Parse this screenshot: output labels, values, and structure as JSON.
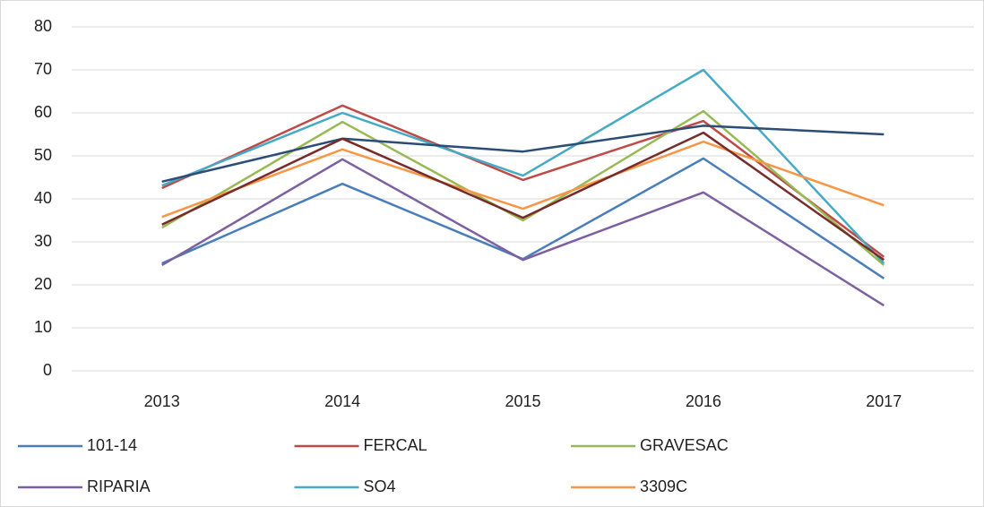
{
  "chart_data": {
    "type": "line",
    "categories": [
      "2013",
      "2014",
      "2015",
      "2016",
      "2017"
    ],
    "series": [
      {
        "name": "101-14",
        "color": "#4a7ebb",
        "values": [
          25,
          43.5,
          26,
          49.4,
          21.5
        ]
      },
      {
        "name": "FERCAL",
        "color": "#be4b48",
        "values": [
          42.5,
          61.7,
          44.4,
          58.1,
          26.5
        ]
      },
      {
        "name": "GRAVESAC",
        "color": "#98b954",
        "values": [
          33.3,
          57.9,
          35,
          60.4,
          24.6
        ]
      },
      {
        "name": "RIPARIA",
        "color": "#7d60a0",
        "values": [
          24.6,
          49.2,
          25.8,
          41.5,
          15.2
        ]
      },
      {
        "name": "SO4",
        "color": "#46aac5",
        "values": [
          43.1,
          60,
          45.4,
          70,
          25
        ]
      },
      {
        "name": "3309C",
        "color": "#f79646",
        "values": [
          35.8,
          51.5,
          37.7,
          53.3,
          38.5
        ]
      },
      {
        "color": "#2c4d75",
        "values": [
          44,
          54,
          51,
          57,
          55
        ]
      },
      {
        "color": "#772c2a",
        "values": [
          34,
          54,
          35.6,
          55.4,
          25.8
        ]
      }
    ],
    "ylim": [
      0,
      80
    ],
    "yticks": [
      0,
      10,
      20,
      30,
      40,
      50,
      60,
      70,
      80
    ],
    "grid": true
  }
}
